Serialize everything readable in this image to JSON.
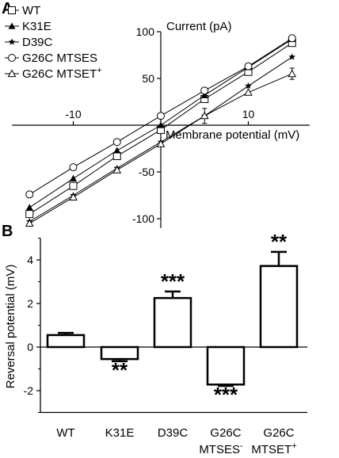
{
  "chart_data": [
    {
      "panel_label": "A",
      "type": "line",
      "xlabel": "Membrane potential (mV)",
      "ylabel": "Current (pA)",
      "xlim": [
        -17,
        17
      ],
      "ylim": [
        -110,
        100
      ],
      "x_ticks": [
        -10,
        10
      ],
      "x_tick_labels": [
        "-10",
        "10"
      ],
      "y_ticks": [
        -100,
        -50,
        50,
        100
      ],
      "y_tick_labels": [
        "-100",
        "-50",
        "50",
        "100"
      ],
      "legend_position": "top-left",
      "grid": false,
      "series": [
        {
          "name": "WT",
          "marker": "open-square",
          "x": [
            -15,
            -10,
            -5,
            0,
            5,
            10,
            15
          ],
          "y": [
            -95,
            -65,
            -33,
            -5,
            28,
            57,
            88
          ]
        },
        {
          "name": "K31E",
          "marker": "filled-triangle",
          "x": [
            -15,
            -10,
            -5,
            0,
            5,
            10,
            15
          ],
          "y": [
            -88,
            -57,
            -27,
            0,
            32,
            62,
            92
          ]
        },
        {
          "name": "D39C",
          "marker": "star",
          "x": [
            -15,
            -10,
            -5,
            0,
            5,
            10,
            15
          ],
          "y": [
            -103,
            -75,
            -46,
            -18,
            10,
            42,
            73
          ]
        },
        {
          "name": "G26C MTSES",
          "marker": "open-circle",
          "x": [
            -15,
            -10,
            -5,
            0,
            5,
            10,
            15
          ],
          "y": [
            -74,
            -45,
            -18,
            10,
            37,
            63,
            93
          ]
        },
        {
          "name": "G26C MTSET",
          "name_superscript": "+",
          "marker": "open-triangle",
          "x": [
            -15,
            -10,
            -5,
            0,
            5,
            10,
            15
          ],
          "y": [
            -105,
            -77,
            -48,
            -20,
            10,
            35,
            55
          ],
          "errors": [
            0,
            0,
            0,
            0,
            8,
            0,
            6
          ]
        }
      ]
    },
    {
      "panel_label": "B",
      "type": "bar",
      "ylabel": "Reversal potential (mV)",
      "ylim": [
        -3,
        5
      ],
      "y_ticks": [
        -2,
        0,
        2,
        4
      ],
      "y_tick_labels": [
        "-2",
        "0",
        "2",
        "4"
      ],
      "categories": [
        "WT",
        "K31E",
        "D39C",
        "G26C",
        "G26C"
      ],
      "category_sublabels": [
        "",
        "",
        "",
        "MTSES",
        "MTSET"
      ],
      "category_sublabel_superscripts": [
        "",
        "",
        "",
        "-",
        "+"
      ],
      "values": [
        0.55,
        -0.55,
        2.25,
        -1.72,
        3.72
      ],
      "errors": [
        0.1,
        0.1,
        0.3,
        0.06,
        0.65
      ],
      "significance": [
        "",
        "**",
        "***",
        "***",
        "**"
      ]
    }
  ]
}
